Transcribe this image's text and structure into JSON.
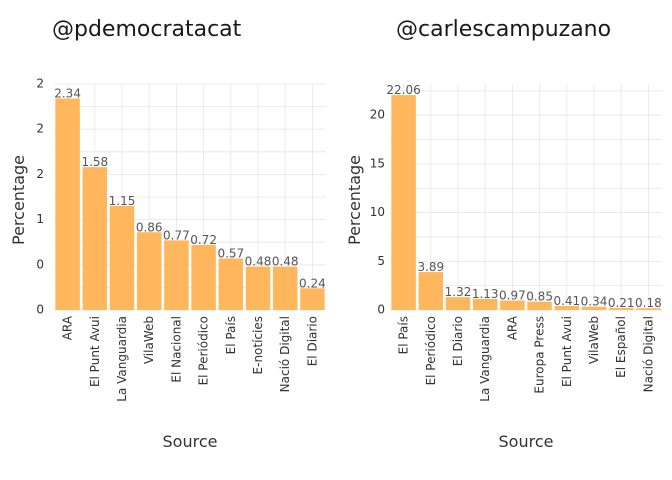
{
  "chart_data": [
    {
      "type": "bar",
      "title": "@pdemocratacat",
      "xlabel": "Source",
      "ylabel": "Percentage",
      "categories": [
        "ARA",
        "El Punt Avui",
        "La Vanguardia",
        "VilaWeb",
        "El Nacional",
        "El Periódico",
        "El País",
        "E-notícies",
        "Nació Digital",
        "El Diario"
      ],
      "values": [
        2.34,
        1.58,
        1.15,
        0.86,
        0.77,
        0.72,
        0.57,
        0.48,
        0.48,
        0.24
      ],
      "value_labels": [
        "2.34",
        "1.58",
        "1.15",
        "0.86",
        "0.77",
        "0.72",
        "0.57",
        "0.48",
        "0.48",
        "0.24"
      ],
      "ylim": [
        0,
        2.5
      ],
      "yticks": [
        0,
        0.5,
        1,
        1.5,
        2,
        2.5
      ],
      "ytick_labels": [
        "0",
        "0",
        "1",
        "2",
        "2",
        "2"
      ],
      "bar_color": "#ffb65c",
      "grid": true
    },
    {
      "type": "bar",
      "title": "@carlescampuzano",
      "xlabel": "Source",
      "ylabel": "Percentage",
      "categories": [
        "El País",
        "El Periódico",
        "El Diario",
        "La Vanguardia",
        "ARA",
        "Europa Press",
        "El Punt Avui",
        "VilaWeb",
        "El Español",
        "Nació Digital"
      ],
      "values": [
        22.06,
        3.89,
        1.32,
        1.13,
        0.97,
        0.85,
        0.41,
        0.34,
        0.21,
        0.18
      ],
      "value_labels": [
        "22.06",
        "3.89",
        "1.32",
        "1.13",
        "0.97",
        "0.85",
        "0.41",
        "0.34",
        "0.21",
        "0.18"
      ],
      "ylim": [
        0,
        23.2
      ],
      "yticks": [
        0,
        5,
        10,
        15,
        20
      ],
      "ytick_labels": [
        "0",
        "5",
        "10",
        "15",
        "20"
      ],
      "bar_color": "#ffb65c",
      "grid": true
    }
  ]
}
